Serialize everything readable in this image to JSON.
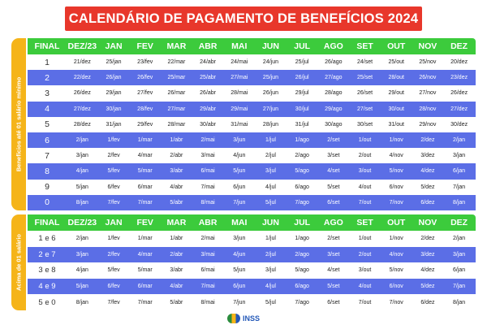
{
  "title": "CALENDÁRIO DE PAGAMENTO DE BENEFÍCIOS 2024",
  "colors": {
    "title_bg": "#e8372b",
    "header_bg": "#3ccb3c",
    "row_blue": "#5b6ee6",
    "side_label_bg": "#f5b419"
  },
  "sections": [
    {
      "side_label": "Benefícios até 01 salário mínimo",
      "headers": [
        "FINAL",
        "DEZ/23",
        "JAN",
        "FEV",
        "MAR",
        "ABR",
        "MAI",
        "JUN",
        "JUL",
        "AGO",
        "SET",
        "OUT",
        "NOV",
        "DEZ"
      ],
      "rows": [
        {
          "final": "1",
          "values": [
            "21/dez",
            "25/jan",
            "23/fev",
            "22/mar",
            "24/abr",
            "24/mai",
            "24/jun",
            "25/jul",
            "26/ago",
            "24/set",
            "25/out",
            "25/nov",
            "20/dez"
          ]
        },
        {
          "final": "2",
          "values": [
            "22/dez",
            "26/jan",
            "26/fev",
            "25/mar",
            "25/abr",
            "27/mai",
            "25/jun",
            "26/jul",
            "27/ago",
            "25/set",
            "28/out",
            "26/nov",
            "23/dez"
          ]
        },
        {
          "final": "3",
          "values": [
            "26/dez",
            "29/jan",
            "27/fev",
            "26/mar",
            "26/abr",
            "28/mai",
            "26/jun",
            "29/jul",
            "28/ago",
            "26/set",
            "29/out",
            "27/nov",
            "26/dez"
          ]
        },
        {
          "final": "4",
          "values": [
            "27/dez",
            "30/jan",
            "28/fev",
            "27/mar",
            "29/abr",
            "29/mai",
            "27/jun",
            "30/jul",
            "29/ago",
            "27/set",
            "30/out",
            "28/nov",
            "27/dez"
          ]
        },
        {
          "final": "5",
          "values": [
            "28/dez",
            "31/jan",
            "29/fev",
            "28/mar",
            "30/abr",
            "31/mai",
            "28/jun",
            "31/jul",
            "30/ago",
            "30/set",
            "31/out",
            "29/nov",
            "30/dez"
          ]
        },
        {
          "final": "6",
          "values": [
            "2/jan",
            "1/fev",
            "1/mar",
            "1/abr",
            "2/mai",
            "3/jun",
            "1/jul",
            "1/ago",
            "2/set",
            "1/out",
            "1/nov",
            "2/dez",
            "2/jan"
          ]
        },
        {
          "final": "7",
          "values": [
            "3/jan",
            "2/fev",
            "4/mar",
            "2/abr",
            "3/mai",
            "4/jun",
            "2/jul",
            "2/ago",
            "3/set",
            "2/out",
            "4/nov",
            "3/dez",
            "3/jan"
          ]
        },
        {
          "final": "8",
          "values": [
            "4/jan",
            "5/fev",
            "5/mar",
            "3/abr",
            "6/mai",
            "5/jun",
            "3/jul",
            "5/ago",
            "4/set",
            "3/out",
            "5/nov",
            "4/dez",
            "6/jan"
          ]
        },
        {
          "final": "9",
          "values": [
            "5/jan",
            "6/fev",
            "6/mar",
            "4/abr",
            "7/mai",
            "6/jun",
            "4/jul",
            "6/ago",
            "5/set",
            "4/out",
            "6/nov",
            "5/dez",
            "7/jan"
          ]
        },
        {
          "final": "0",
          "values": [
            "8/jan",
            "7/fev",
            "7/mar",
            "5/abr",
            "8/mai",
            "7/jun",
            "5/jul",
            "7/ago",
            "6/set",
            "7/out",
            "7/nov",
            "6/dez",
            "8/jan"
          ]
        }
      ]
    },
    {
      "side_label": "Acima de 01 salário",
      "headers": [
        "FINAL",
        "DEZ/23",
        "JAN",
        "FEV",
        "MAR",
        "ABR",
        "MAI",
        "JUN",
        "JUL",
        "AGO",
        "SET",
        "OUT",
        "NOV",
        "DEZ"
      ],
      "rows": [
        {
          "final": "1 e 6",
          "values": [
            "2/jan",
            "1/fev",
            "1/mar",
            "1/abr",
            "2/mai",
            "3/jun",
            "1/jul",
            "1/ago",
            "2/set",
            "1/out",
            "1/nov",
            "2/dez",
            "2/jan"
          ]
        },
        {
          "final": "2 e 7",
          "values": [
            "3/jan",
            "2/fev",
            "4/mar",
            "2/abr",
            "3/mai",
            "4/jun",
            "2/jul",
            "2/ago",
            "3/set",
            "2/out",
            "4/nov",
            "3/dez",
            "3/jan"
          ]
        },
        {
          "final": "3 e 8",
          "values": [
            "4/jan",
            "5/fev",
            "5/mar",
            "3/abr",
            "6/mai",
            "5/jun",
            "3/jul",
            "5/ago",
            "4/set",
            "3/out",
            "5/nov",
            "4/dez",
            "6/jan"
          ]
        },
        {
          "final": "4 e 9",
          "values": [
            "5/jan",
            "6/fev",
            "6/mar",
            "4/abr",
            "7/mai",
            "6/jun",
            "4/jul",
            "6/ago",
            "5/set",
            "4/out",
            "6/nov",
            "5/dez",
            "7/jan"
          ]
        },
        {
          "final": "5 e 0",
          "values": [
            "8/jan",
            "7/fev",
            "7/mar",
            "5/abr",
            "8/mai",
            "7/jun",
            "5/jul",
            "7/ago",
            "6/set",
            "7/out",
            "7/nov",
            "6/dez",
            "8/jan"
          ]
        }
      ]
    }
  ],
  "footer": {
    "logo_text": "INSS"
  }
}
